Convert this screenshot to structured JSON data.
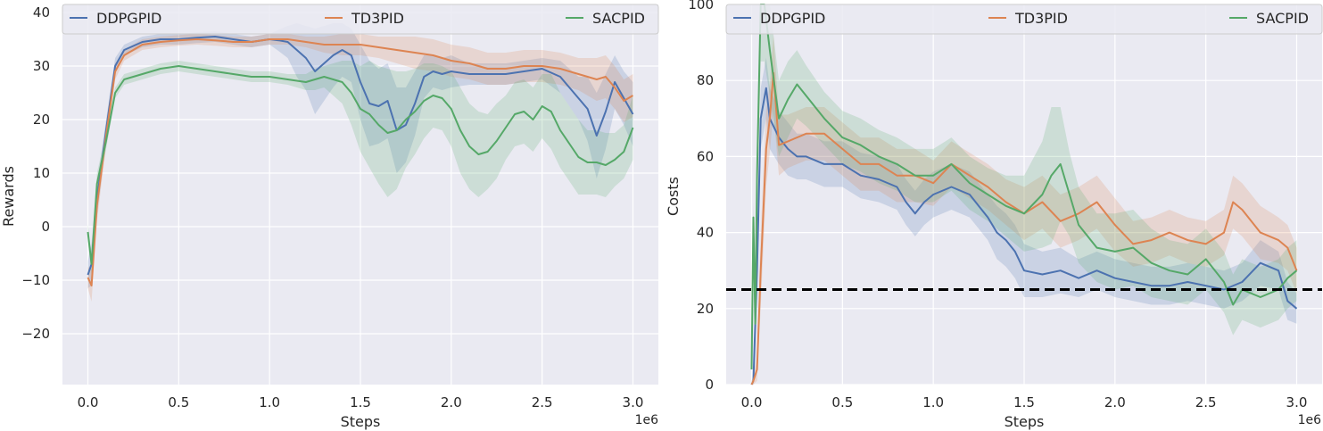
{
  "colors": {
    "ddpg": "#4c72b0",
    "td3": "#dd8452",
    "sac": "#55a868",
    "panel_bg": "#eaeaf2",
    "grid": "#ffffff",
    "threshold": "#000000"
  },
  "chart_data": [
    {
      "type": "line",
      "xlabel": "Steps",
      "ylabel": "Rewards",
      "x_offset_label": "1e6",
      "xlim": [
        -0.14,
        3.14
      ],
      "ylim": [
        -29.5,
        41.5
      ],
      "xticks": [
        0.0,
        0.5,
        1.0,
        1.5,
        2.0,
        2.5,
        3.0
      ],
      "xtick_labels": [
        "0.0",
        "0.5",
        "1.0",
        "1.5",
        "2.0",
        "2.5",
        "3.0"
      ],
      "yticks": [
        -20,
        -10,
        0,
        10,
        20,
        30,
        40
      ],
      "ytick_labels": [
        "−20",
        "−10",
        "0",
        "10",
        "20",
        "30",
        "40"
      ],
      "grid": true,
      "legend_position": "top",
      "series": [
        {
          "name": "DDPGPID",
          "color_key": "ddpg",
          "x": [
            0,
            0.02,
            0.05,
            0.1,
            0.15,
            0.2,
            0.3,
            0.4,
            0.5,
            0.6,
            0.7,
            0.8,
            0.9,
            1.0,
            1.05,
            1.1,
            1.15,
            1.2,
            1.25,
            1.3,
            1.35,
            1.4,
            1.45,
            1.5,
            1.55,
            1.6,
            1.65,
            1.7,
            1.75,
            1.8,
            1.85,
            1.9,
            1.95,
            2.0,
            2.1,
            2.2,
            2.3,
            2.4,
            2.5,
            2.6,
            2.7,
            2.75,
            2.8,
            2.85,
            2.9,
            2.95,
            3.0
          ],
          "y": [
            -9,
            -7,
            5,
            18,
            30,
            33,
            34.5,
            35,
            35,
            35.3,
            35.5,
            35,
            34.5,
            35,
            34.8,
            34.5,
            33,
            31.5,
            29,
            30.5,
            32,
            33,
            32,
            27,
            23,
            22.5,
            23.5,
            18,
            19,
            23,
            28,
            29,
            28.5,
            29,
            28.5,
            28.5,
            28.5,
            29,
            29.5,
            28,
            24,
            22,
            17,
            21.5,
            27,
            24,
            21
          ],
          "band": [
            2.5,
            4,
            3,
            2,
            1.5,
            1,
            1,
            1,
            1,
            1,
            1,
            1,
            1,
            1,
            2,
            3,
            5,
            6,
            8,
            7,
            6,
            5,
            5,
            7,
            8,
            7,
            7,
            8,
            7,
            6,
            4,
            3,
            3,
            3,
            2,
            2,
            2,
            2,
            2,
            3,
            4,
            6,
            8,
            7,
            5,
            5,
            6
          ]
        },
        {
          "name": "TD3PID",
          "color_key": "td3",
          "x": [
            0,
            0.02,
            0.05,
            0.1,
            0.15,
            0.2,
            0.3,
            0.4,
            0.5,
            0.6,
            0.7,
            0.8,
            0.9,
            1.0,
            1.1,
            1.2,
            1.3,
            1.4,
            1.5,
            1.6,
            1.7,
            1.8,
            1.9,
            2.0,
            2.1,
            2.2,
            2.3,
            2.4,
            2.5,
            2.6,
            2.7,
            2.8,
            2.85,
            2.9,
            2.95,
            3.0
          ],
          "y": [
            -9.5,
            -11,
            4,
            17,
            29,
            32,
            34,
            34.5,
            34.8,
            35,
            34.8,
            34.5,
            34.5,
            35,
            35,
            34.5,
            34,
            34,
            34,
            33.5,
            33,
            32.5,
            32,
            31,
            30.5,
            29.5,
            29.5,
            30,
            30,
            29.5,
            28.5,
            27.5,
            28,
            26,
            23.5,
            24.5
          ],
          "band": [
            2,
            3,
            3,
            2,
            1.5,
            1,
            1,
            1,
            1,
            1,
            1,
            1,
            1,
            1,
            1,
            1,
            1.5,
            2,
            2,
            2,
            2.5,
            3,
            3,
            3,
            3,
            3,
            3,
            3,
            3,
            3,
            3,
            4,
            4,
            4,
            4,
            4
          ]
        },
        {
          "name": "SACPID",
          "color_key": "sac",
          "x": [
            0,
            0.02,
            0.05,
            0.1,
            0.15,
            0.2,
            0.3,
            0.4,
            0.5,
            0.6,
            0.7,
            0.8,
            0.9,
            1.0,
            1.1,
            1.2,
            1.25,
            1.3,
            1.35,
            1.4,
            1.45,
            1.5,
            1.55,
            1.6,
            1.65,
            1.7,
            1.75,
            1.8,
            1.85,
            1.9,
            1.95,
            2.0,
            2.05,
            2.1,
            2.15,
            2.2,
            2.25,
            2.3,
            2.35,
            2.4,
            2.45,
            2.5,
            2.55,
            2.6,
            2.65,
            2.7,
            2.75,
            2.8,
            2.85,
            2.9,
            2.95,
            3.0
          ],
          "y": [
            -1,
            -7,
            8,
            16,
            25,
            27.5,
            28.5,
            29.5,
            30,
            29.5,
            29,
            28.5,
            28,
            28,
            27.5,
            27,
            27.5,
            28,
            27.5,
            27,
            25,
            22,
            21,
            19,
            17.5,
            18,
            20,
            21.5,
            23.5,
            24.5,
            24,
            22,
            18,
            15,
            13.5,
            14,
            16,
            18.5,
            21,
            21.5,
            20,
            22.5,
            21.5,
            18,
            15.5,
            13,
            12,
            12,
            11.5,
            12.5,
            14,
            18.5
          ],
          "band": [
            1.5,
            2,
            2,
            1.5,
            1,
            1,
            1,
            1,
            1,
            1,
            1,
            1,
            1,
            1,
            1,
            1.5,
            2,
            2,
            3,
            4,
            6,
            8,
            10,
            11,
            12,
            11,
            9,
            8,
            7,
            6,
            6,
            7,
            8,
            8,
            8,
            7,
            7,
            6,
            6,
            6,
            6,
            6,
            7,
            7,
            7,
            7,
            6,
            6,
            6,
            5,
            5,
            6
          ]
        }
      ]
    },
    {
      "type": "line",
      "xlabel": "Steps",
      "ylabel": "Costs",
      "x_offset_label": "1e6",
      "xlim": [
        -0.14,
        3.14
      ],
      "ylim": [
        0,
        100
      ],
      "xticks": [
        0.0,
        0.5,
        1.0,
        1.5,
        2.0,
        2.5,
        3.0
      ],
      "xtick_labels": [
        "0.0",
        "0.5",
        "1.0",
        "1.5",
        "2.0",
        "2.5",
        "3.0"
      ],
      "yticks": [
        0,
        20,
        40,
        60,
        80,
        100
      ],
      "ytick_labels": [
        "0",
        "20",
        "40",
        "60",
        "80",
        "100"
      ],
      "grid": true,
      "legend_position": "top",
      "threshold": 25,
      "series": [
        {
          "name": "DDPGPID",
          "color_key": "ddpg",
          "x": [
            0,
            0.01,
            0.03,
            0.05,
            0.08,
            0.1,
            0.15,
            0.2,
            0.25,
            0.3,
            0.4,
            0.5,
            0.6,
            0.7,
            0.8,
            0.85,
            0.9,
            0.95,
            1.0,
            1.1,
            1.2,
            1.3,
            1.35,
            1.4,
            1.45,
            1.5,
            1.6,
            1.7,
            1.8,
            1.9,
            2.0,
            2.1,
            2.2,
            2.3,
            2.4,
            2.5,
            2.6,
            2.7,
            2.8,
            2.9,
            2.95,
            3.0
          ],
          "y": [
            0,
            1,
            30,
            70,
            78,
            70,
            65,
            62,
            60,
            60,
            58,
            58,
            55,
            54,
            52,
            48,
            45,
            48,
            50,
            52,
            50,
            44,
            40,
            38,
            35,
            30,
            29,
            30,
            28,
            30,
            28,
            27,
            26,
            26,
            27,
            26,
            25,
            27,
            32,
            30,
            22,
            20
          ],
          "band": [
            1,
            1,
            5,
            8,
            8,
            8,
            7,
            7,
            6,
            6,
            6,
            6,
            6,
            6,
            6,
            6,
            6,
            6,
            6,
            6,
            6,
            6,
            7,
            7,
            7,
            7,
            6,
            6,
            5,
            5,
            5,
            5,
            5,
            5,
            5,
            5,
            5,
            5,
            6,
            5,
            5,
            4
          ]
        },
        {
          "name": "TD3PID",
          "color_key": "td3",
          "x": [
            0,
            0.01,
            0.03,
            0.05,
            0.08,
            0.1,
            0.12,
            0.15,
            0.2,
            0.3,
            0.4,
            0.5,
            0.6,
            0.7,
            0.8,
            0.9,
            1.0,
            1.1,
            1.2,
            1.3,
            1.4,
            1.5,
            1.6,
            1.7,
            1.8,
            1.9,
            2.0,
            2.1,
            2.2,
            2.3,
            2.4,
            2.5,
            2.6,
            2.65,
            2.7,
            2.8,
            2.9,
            2.95,
            3.0
          ],
          "y": [
            0,
            1,
            4,
            30,
            62,
            70,
            82,
            63,
            64,
            66,
            66,
            62,
            58,
            58,
            55,
            55,
            53,
            58,
            55,
            52,
            48,
            45,
            48,
            43,
            45,
            48,
            42,
            37,
            38,
            40,
            38,
            37,
            40,
            48,
            46,
            40,
            38,
            36,
            30
          ],
          "band": [
            1,
            1,
            3,
            10,
            10,
            9,
            10,
            8,
            7,
            7,
            7,
            7,
            7,
            7,
            7,
            7,
            6,
            6,
            6,
            6,
            6,
            7,
            7,
            7,
            7,
            7,
            7,
            6,
            6,
            6,
            6,
            6,
            6,
            7,
            7,
            7,
            6,
            6,
            6
          ]
        },
        {
          "name": "SACPID",
          "color_key": "sac",
          "x": [
            0,
            0.01,
            0.02,
            0.03,
            0.05,
            0.07,
            0.1,
            0.15,
            0.2,
            0.25,
            0.3,
            0.4,
            0.5,
            0.6,
            0.7,
            0.8,
            0.9,
            1.0,
            1.1,
            1.2,
            1.3,
            1.4,
            1.5,
            1.6,
            1.65,
            1.7,
            1.75,
            1.8,
            1.9,
            2.0,
            2.1,
            2.2,
            2.3,
            2.4,
            2.5,
            2.6,
            2.65,
            2.7,
            2.8,
            2.9,
            2.95,
            3.0
          ],
          "y": [
            4,
            44,
            16,
            55,
            100,
            100,
            88,
            70,
            75,
            79,
            76,
            70,
            65,
            63,
            60,
            58,
            55,
            55,
            58,
            53,
            50,
            47,
            45,
            50,
            55,
            58,
            50,
            42,
            36,
            35,
            36,
            32,
            30,
            29,
            33,
            27,
            21,
            25,
            23,
            25,
            28,
            30
          ],
          "band": [
            2,
            4,
            4,
            10,
            15,
            15,
            12,
            10,
            10,
            9,
            8,
            7,
            7,
            7,
            7,
            7,
            7,
            7,
            7,
            7,
            7,
            8,
            10,
            14,
            18,
            15,
            11,
            10,
            9,
            10,
            10,
            9,
            8,
            8,
            8,
            8,
            8,
            8,
            8,
            8,
            8,
            8
          ]
        }
      ]
    }
  ]
}
